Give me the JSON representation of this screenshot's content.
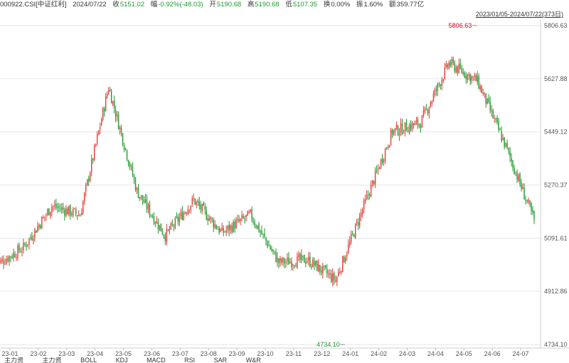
{
  "header": {
    "code": "000922.CSI[中证红利]",
    "date": "2024/07/22",
    "close_label": "收",
    "close_value": "5151.02",
    "change_label": "幅",
    "change_value": "-0.92%(-48.03)",
    "open_label": "开",
    "open_value": "5190.68",
    "high_label": "高",
    "high_value": "5190.68",
    "low_label": "低",
    "low_value": "5107.35",
    "turnover_label": "换",
    "turnover_value": "0.00%",
    "amplitude_label": "振",
    "amplitude_value": "1.60%",
    "amount_label": "额",
    "amount_value": "359.77亿"
  },
  "range_label": "2023/01/05-2024/07/22(373日)",
  "tabs": [
    "主力资",
    "主力资",
    "BOLL",
    "KDJ",
    "MACD",
    "RSI",
    "SAR",
    "W&R"
  ],
  "colors": {
    "up": "#e0413a",
    "down": "#1e9a2e",
    "grid": "#e6e6e6",
    "annot_high": "#d0021b",
    "annot_low": "#1e9a2e"
  },
  "chart_data": {
    "type": "candlestick",
    "y_ticks": [
      "5806.63",
      "5627.88",
      "5449.12",
      "5270.37",
      "5091.61",
      "4912.86",
      "4734.10"
    ],
    "ylim": [
      4734.1,
      5806.63
    ],
    "x_ticks": [
      "23-01",
      "23-02",
      "23-03",
      "23-04",
      "23-05",
      "23-06",
      "23-07",
      "23-08",
      "23-09",
      "23-10",
      "23-11",
      "23-12",
      "24-01",
      "24-02",
      "24-03",
      "24-04",
      "24-05",
      "24-06",
      "24-07"
    ],
    "grid": true,
    "annotations": [
      {
        "label": "5806.63",
        "kind": "high",
        "month": "24-05",
        "value": 5806.63
      },
      {
        "label": "4734.10",
        "kind": "low",
        "month": "24-01",
        "value": 4734.1
      }
    ],
    "monthly_trend": [
      {
        "month": "23-01",
        "start": 5000,
        "end": 5060
      },
      {
        "month": "23-02",
        "start": 5060,
        "end": 5200
      },
      {
        "month": "23-03",
        "start": 5200,
        "end": 5170
      },
      {
        "month": "23-04",
        "start": 5170,
        "end": 5600
      },
      {
        "month": "23-05",
        "start": 5600,
        "end": 5250
      },
      {
        "month": "23-06",
        "start": 5250,
        "end": 5100
      },
      {
        "month": "23-07",
        "start": 5100,
        "end": 5220
      },
      {
        "month": "23-08",
        "start": 5220,
        "end": 5110
      },
      {
        "month": "23-09",
        "start": 5110,
        "end": 5170
      },
      {
        "month": "23-10",
        "start": 5170,
        "end": 5010
      },
      {
        "month": "23-11",
        "start": 5010,
        "end": 5020
      },
      {
        "month": "23-12",
        "start": 5020,
        "end": 4950
      },
      {
        "month": "24-01",
        "start": 4950,
        "end": 5200
      },
      {
        "month": "24-02",
        "start": 5200,
        "end": 5450
      },
      {
        "month": "24-03",
        "start": 5450,
        "end": 5480
      },
      {
        "month": "24-04",
        "start": 5480,
        "end": 5680
      },
      {
        "month": "24-05",
        "start": 5680,
        "end": 5620
      },
      {
        "month": "24-06",
        "start": 5620,
        "end": 5400
      },
      {
        "month": "24-07",
        "start": 5400,
        "end": 5151.02
      }
    ]
  }
}
